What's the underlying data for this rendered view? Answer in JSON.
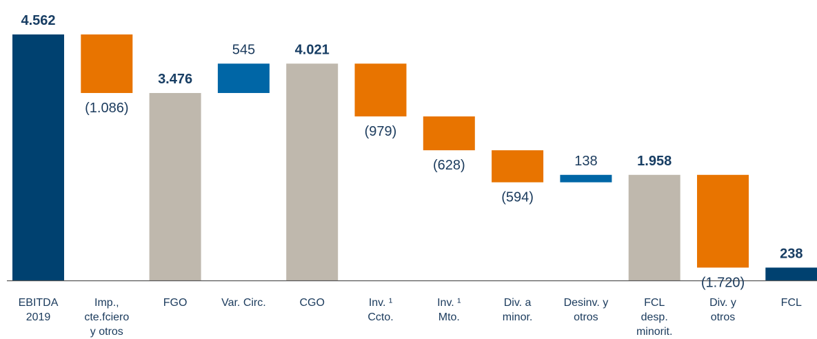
{
  "chart_data": {
    "type": "waterfall",
    "categories": [
      "EBITDA\n2019",
      "Imp.,\ncte.fciero\ny otros",
      "FGO",
      "Var. Circ.",
      "CGO",
      "Inv. ¹\nCcto.",
      "Inv. ¹\nMto.",
      "Div. a\nminor.",
      "Desinv. y\notros",
      "FCL\ndesp.\nminorit.",
      "Div. y\notros",
      "FCL"
    ],
    "values": [
      4562,
      -1086,
      3476,
      545,
      4021,
      -979,
      -628,
      -594,
      138,
      1958,
      -1720,
      238
    ],
    "value_labels": [
      "4.562",
      "(1.086)",
      "3.476",
      "545",
      "4.021",
      "(979)",
      "(628)",
      "(594)",
      "138",
      "1.958",
      "(1.720)",
      "238"
    ],
    "measure": [
      "total",
      "relative",
      "total",
      "relative",
      "total",
      "relative",
      "relative",
      "relative",
      "relative",
      "total",
      "relative",
      "total"
    ],
    "colors": [
      "#004170",
      "#e87400",
      "#bfb8ad",
      "#0066a6",
      "#bfb8ad",
      "#e87400",
      "#e87400",
      "#e87400",
      "#0066a6",
      "#bfb8ad",
      "#e87400",
      "#004170"
    ]
  }
}
